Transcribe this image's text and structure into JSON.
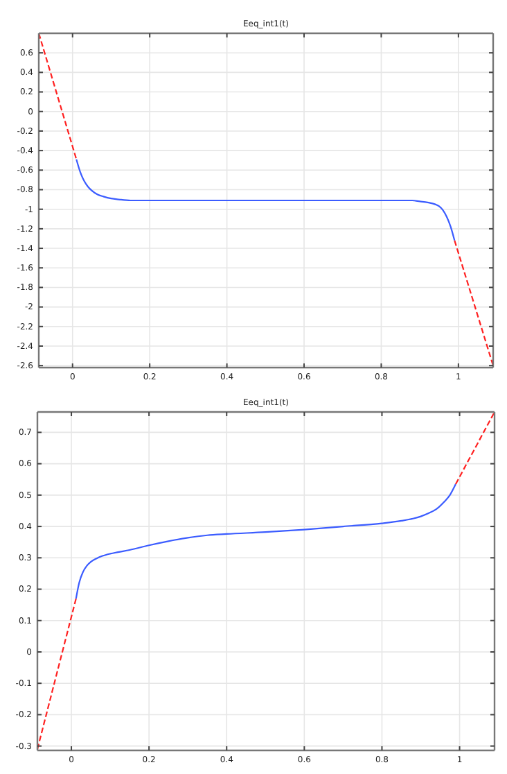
{
  "chart_data": [
    {
      "type": "line",
      "title": "Eeq_int1(t)",
      "xlim": [
        -0.0875,
        1.09
      ],
      "ylim": [
        -2.62,
        0.8
      ],
      "xticks": [
        0,
        0.2,
        0.4,
        0.6,
        0.8,
        1
      ],
      "yticks": [
        0.6,
        0.4,
        0.2,
        0,
        -0.2,
        -0.4,
        -0.6,
        -0.8,
        -1,
        -1.2,
        -1.4,
        -1.6,
        -1.8,
        -2,
        -2.2,
        -2.4,
        -2.6
      ],
      "grid": true,
      "marker": "none",
      "series": [
        {
          "color": "#ff2020",
          "line_style": "dashed",
          "x": [
            -0.0875,
            0.01
          ],
          "values": [
            0.8,
            -0.49
          ]
        },
        {
          "color": "#3b5cff",
          "line_style": "solid",
          "x": [
            0.01,
            0.02,
            0.03,
            0.04,
            0.05,
            0.065,
            0.08,
            0.1,
            0.12,
            0.15,
            0.2,
            0.3,
            0.4,
            0.5,
            0.6,
            0.7,
            0.8,
            0.85,
            0.88,
            0.9,
            0.92,
            0.94,
            0.95,
            0.96,
            0.97,
            0.98,
            0.99
          ],
          "values": [
            -0.49,
            -0.62,
            -0.71,
            -0.77,
            -0.81,
            -0.85,
            -0.87,
            -0.89,
            -0.9,
            -0.91,
            -0.91,
            -0.91,
            -0.91,
            -0.91,
            -0.91,
            -0.91,
            -0.91,
            -0.91,
            -0.91,
            -0.92,
            -0.93,
            -0.95,
            -0.97,
            -1.01,
            -1.08,
            -1.18,
            -1.32
          ]
        },
        {
          "color": "#ff2020",
          "line_style": "dashed",
          "x": [
            0.99,
            1.09
          ],
          "values": [
            -1.32,
            -2.6
          ]
        }
      ]
    },
    {
      "type": "line",
      "title": "Eeq_int1(t)",
      "xlim": [
        -0.0875,
        1.09
      ],
      "ylim": [
        -0.314,
        0.765
      ],
      "xticks": [
        0,
        0.2,
        0.4,
        0.6,
        0.8,
        1
      ],
      "yticks": [
        0.7,
        0.6,
        0.5,
        0.4,
        0.3,
        0.2,
        0.1,
        0,
        -0.1,
        -0.2,
        -0.3
      ],
      "grid": true,
      "marker": "none",
      "series": [
        {
          "color": "#ff2020",
          "line_style": "dashed",
          "x": [
            -0.0875,
            0.012
          ],
          "values": [
            -0.31,
            0.17
          ]
        },
        {
          "color": "#3b5cff",
          "line_style": "solid",
          "x": [
            0.012,
            0.02,
            0.03,
            0.04,
            0.05,
            0.065,
            0.08,
            0.1,
            0.12,
            0.15,
            0.2,
            0.25,
            0.3,
            0.35,
            0.4,
            0.5,
            0.6,
            0.7,
            0.8,
            0.85,
            0.88,
            0.9,
            0.92,
            0.94,
            0.96,
            0.975,
            0.99
          ],
          "values": [
            0.17,
            0.22,
            0.255,
            0.275,
            0.287,
            0.298,
            0.306,
            0.313,
            0.318,
            0.325,
            0.34,
            0.353,
            0.364,
            0.372,
            0.376,
            0.382,
            0.39,
            0.4,
            0.41,
            0.418,
            0.425,
            0.432,
            0.442,
            0.455,
            0.478,
            0.5,
            0.535
          ]
        },
        {
          "color": "#ff2020",
          "line_style": "dashed",
          "x": [
            0.99,
            1.09
          ],
          "values": [
            0.535,
            0.765
          ]
        }
      ]
    }
  ]
}
